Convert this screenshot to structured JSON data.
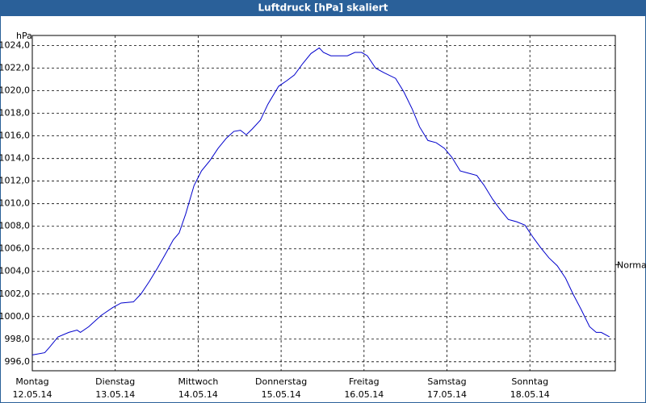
{
  "chart_data": {
    "type": "line",
    "title": "Luftdruck [hPa] skaliert",
    "y_unit": "hPa",
    "x": [
      0.0,
      0.15,
      0.21,
      0.31,
      0.44,
      0.54,
      0.58,
      0.68,
      0.83,
      0.97,
      1.07,
      1.22,
      1.31,
      1.41,
      1.51,
      1.61,
      1.7,
      1.77,
      1.85,
      1.95,
      2.04,
      2.14,
      2.24,
      2.34,
      2.43,
      2.51,
      2.58,
      2.65,
      2.75,
      2.84,
      2.97,
      3.07,
      3.16,
      3.26,
      3.36,
      3.46,
      3.51,
      3.6,
      3.7,
      3.8,
      3.89,
      3.97,
      4.04,
      4.14,
      4.24,
      4.38,
      4.48,
      4.58,
      4.67,
      4.77,
      4.87,
      4.97,
      5.06,
      5.16,
      5.26,
      5.36,
      5.45,
      5.55,
      5.65,
      5.74,
      5.84,
      5.94,
      6.04,
      6.13,
      6.23,
      6.33,
      6.43,
      6.52,
      6.62,
      6.72,
      6.8,
      6.86,
      6.96
    ],
    "series": [
      {
        "color": "#0000cc",
        "values": [
          996.6,
          996.8,
          997.3,
          998.2,
          998.6,
          998.8,
          998.6,
          999.1,
          1000.1,
          1000.8,
          1001.2,
          1001.3,
          1002.0,
          1003.1,
          1004.3,
          1005.6,
          1006.8,
          1007.4,
          1009.1,
          1011.6,
          1012.9,
          1013.8,
          1014.9,
          1015.8,
          1016.4,
          1016.5,
          1016.1,
          1016.6,
          1017.4,
          1018.8,
          1020.4,
          1020.9,
          1021.4,
          1022.4,
          1023.3,
          1023.8,
          1023.4,
          1023.1,
          1023.1,
          1023.1,
          1023.4,
          1023.4,
          1023.1,
          1022.0,
          1021.6,
          1021.1,
          1019.9,
          1018.4,
          1016.8,
          1015.6,
          1015.4,
          1014.9,
          1014.1,
          1012.9,
          1012.7,
          1012.5,
          1011.6,
          1010.4,
          1009.4,
          1008.6,
          1008.4,
          1008.1,
          1007.0,
          1006.1,
          1005.2,
          1004.5,
          1003.4,
          1002.0,
          1000.6,
          999.1,
          998.6,
          998.6,
          998.2
        ]
      }
    ],
    "xlim": [
      0,
      7.03
    ],
    "ylim": [
      995.2,
      1024.9
    ],
    "xticks": [
      {
        "value": 0,
        "label": "Montag",
        "date": "12.05.14"
      },
      {
        "value": 1,
        "label": "Dienstag",
        "date": "13.05.14"
      },
      {
        "value": 2,
        "label": "Mittwoch",
        "date": "14.05.14"
      },
      {
        "value": 3,
        "label": "Donnerstag",
        "date": "15.05.14"
      },
      {
        "value": 4,
        "label": "Freitag",
        "date": "16.05.14"
      },
      {
        "value": 5,
        "label": "Samstag",
        "date": "17.05.14"
      },
      {
        "value": 6,
        "label": "Sonntag",
        "date": "18.05.14"
      }
    ],
    "yticks": [
      {
        "value": 996,
        "label": "996,0"
      },
      {
        "value": 998,
        "label": "998,0"
      },
      {
        "value": 1000,
        "label": "1000,0"
      },
      {
        "value": 1002,
        "label": "1002,0"
      },
      {
        "value": 1004,
        "label": "1004,0"
      },
      {
        "value": 1006,
        "label": "1006,0"
      },
      {
        "value": 1008,
        "label": "1008,0"
      },
      {
        "value": 1010,
        "label": "1010,0"
      },
      {
        "value": 1012,
        "label": "1012,0"
      },
      {
        "value": 1014,
        "label": "1014,0"
      },
      {
        "value": 1016,
        "label": "1016,0"
      },
      {
        "value": 1018,
        "label": "1018,0"
      },
      {
        "value": 1020,
        "label": "1020,0"
      },
      {
        "value": 1022,
        "label": "1022,0"
      },
      {
        "value": 1024,
        "label": "1024,0"
      }
    ],
    "reference": {
      "label": "Normal",
      "value": 1004.6
    },
    "grid": true
  }
}
